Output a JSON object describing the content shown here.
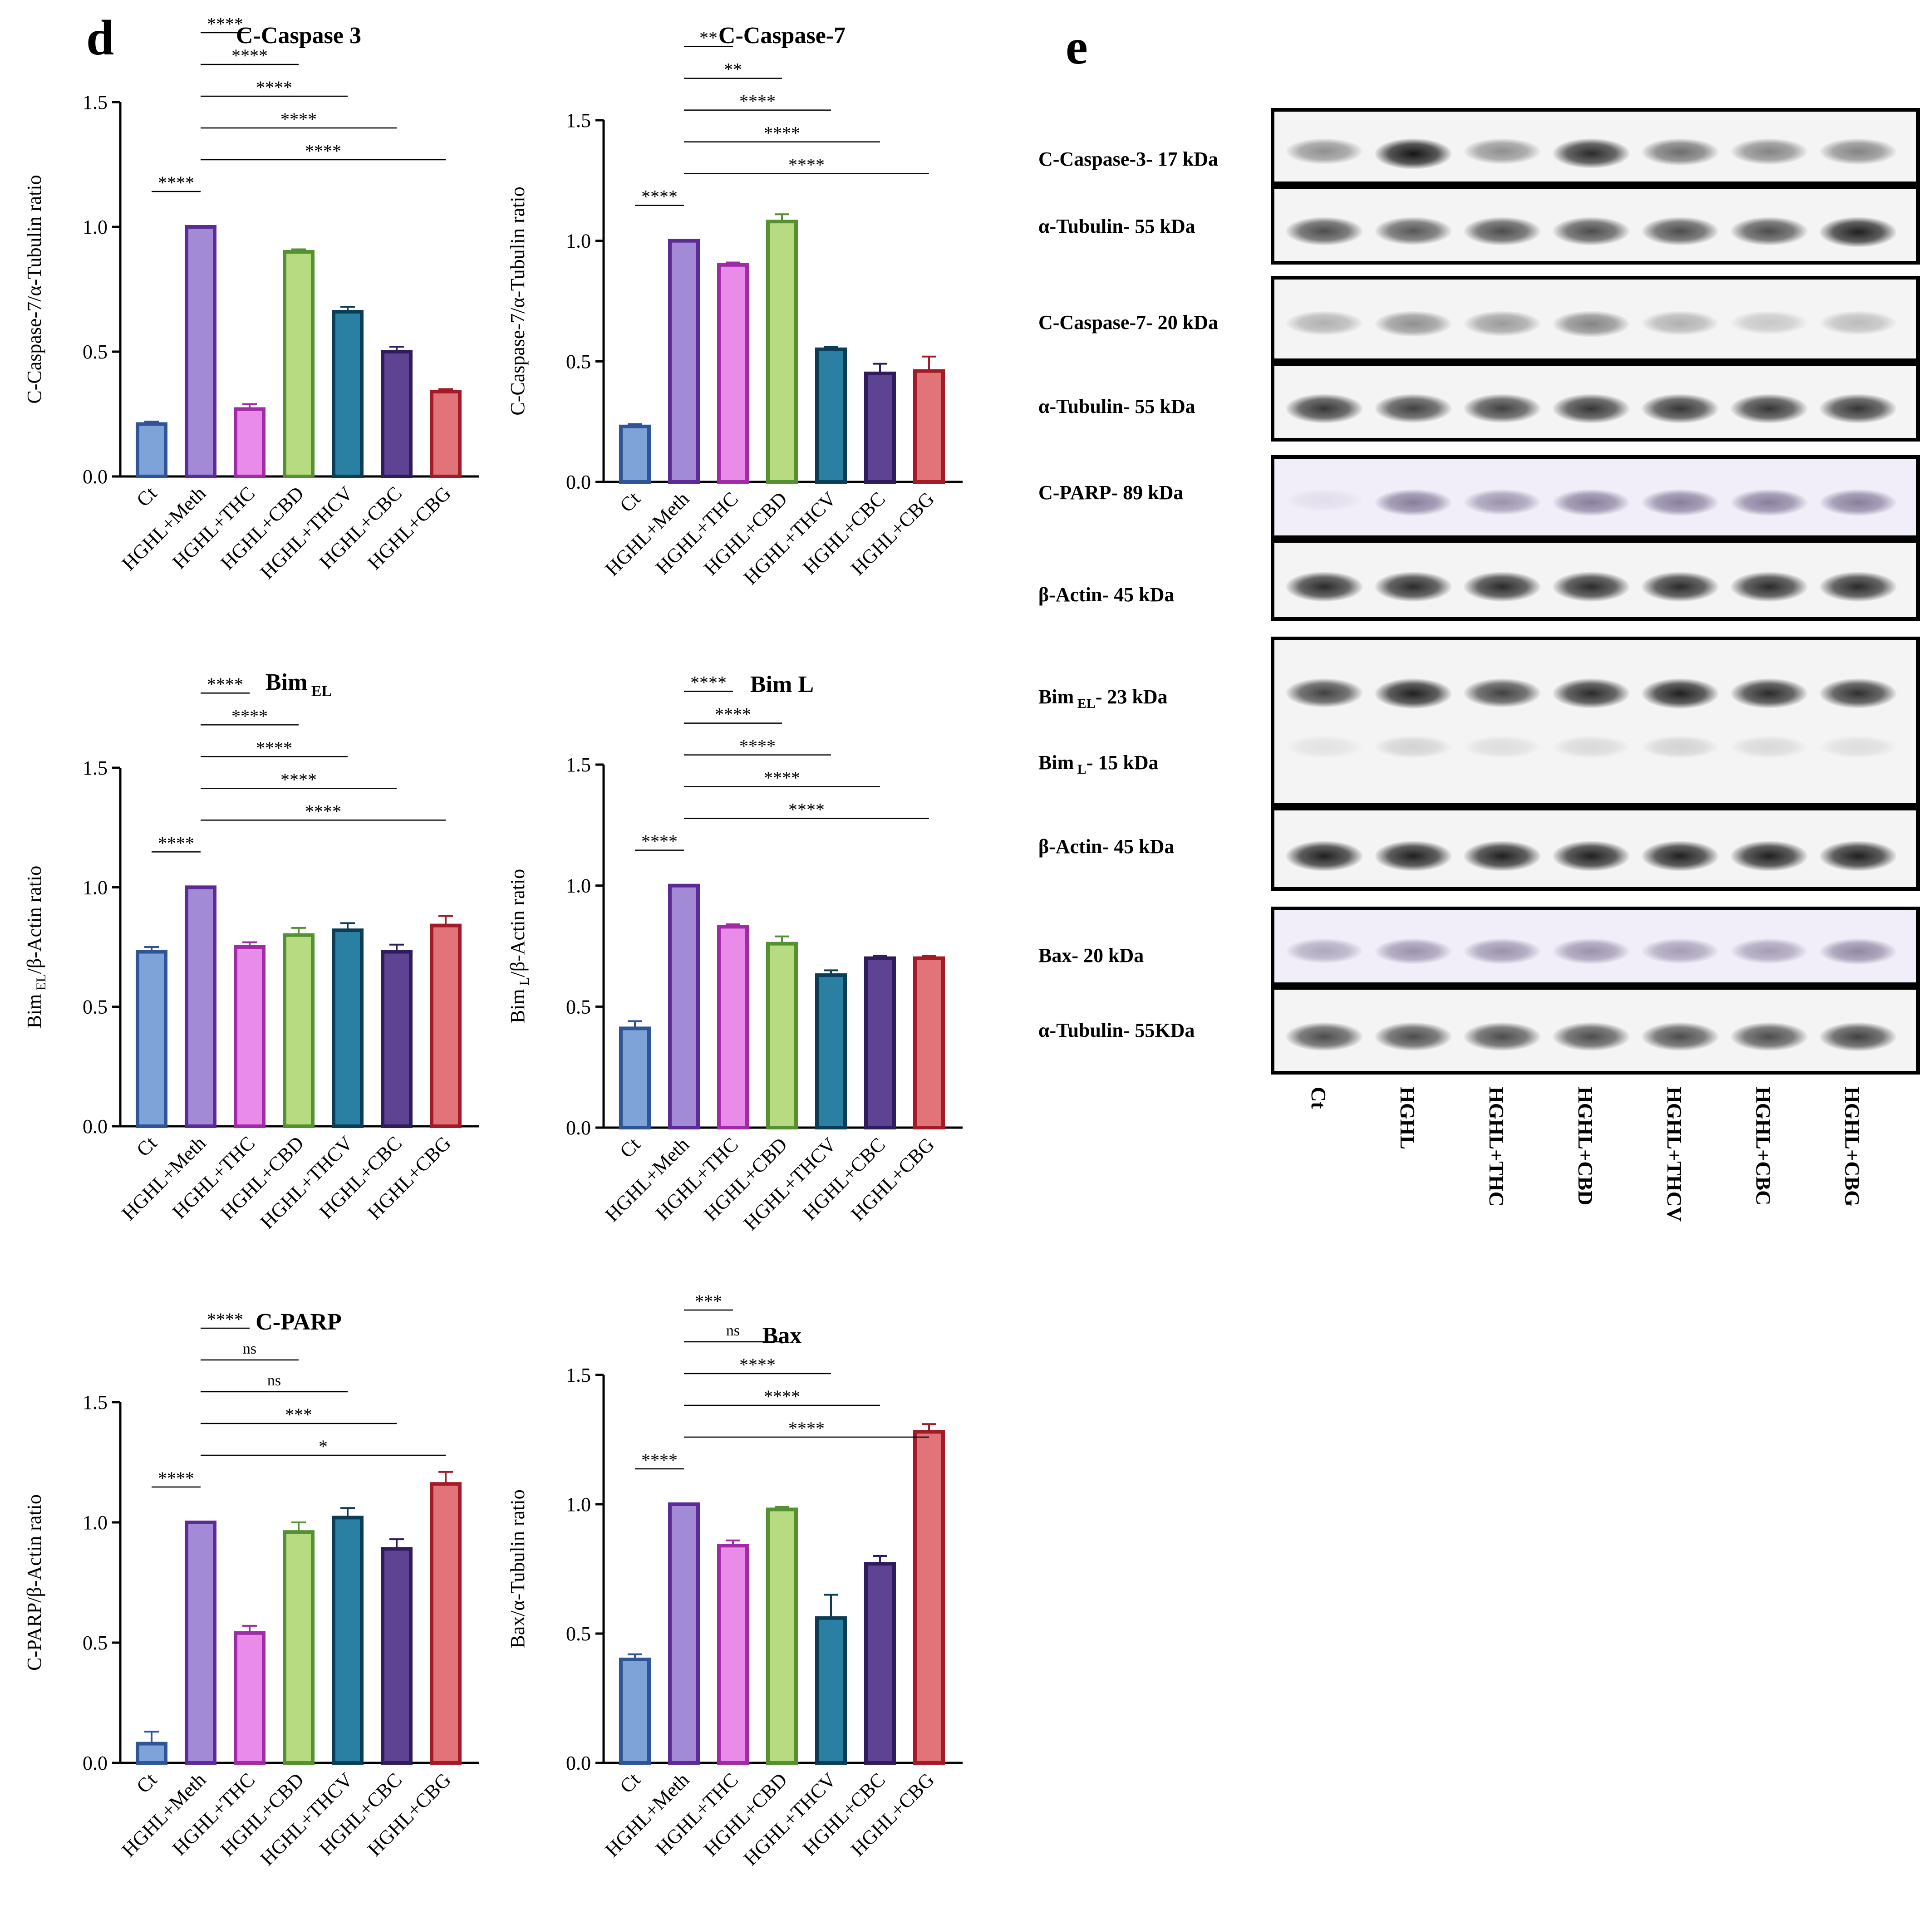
{
  "panel_letters": {
    "d": "d",
    "e": "e"
  },
  "colors": {
    "Ct": {
      "fill": "#7ea3d8",
      "stroke": "#2f5597"
    },
    "HGHL+Meth": {
      "fill": "#a28ad6",
      "stroke": "#5b2c96"
    },
    "HGHL+THC": {
      "fill": "#e98be8",
      "stroke": "#a12aa6"
    },
    "HGHL+CBD": {
      "fill": "#b7db80",
      "stroke": "#559130"
    },
    "HGHL+THCV": {
      "fill": "#2a80a3",
      "stroke": "#0c3d57"
    },
    "HGHL+CBC": {
      "fill": "#5f4393",
      "stroke": "#2f1c5c"
    },
    "HGHL+CBG": {
      "fill": "#e07479",
      "stroke": "#a31b26"
    }
  },
  "chart_data": [
    {
      "id": "caspase3",
      "type": "bar",
      "title": "C-Caspase 3",
      "title_sub": "",
      "ylabel": "C-Caspase-7/α-Tubulin ratio",
      "ylabel_sub": "",
      "ylabel_tail": "",
      "ylim": [
        0,
        1.5
      ],
      "yticks": [
        "0.0",
        "0.5",
        "1.0",
        "1.5"
      ],
      "categories": [
        "Ct",
        "HGHL+Meth",
        "HGHL+THC",
        "HGHL+CBD",
        "HGHL+THCV",
        "HGHL+CBC",
        "HGHL+CBG"
      ],
      "values": [
        0.21,
        1.0,
        0.27,
        0.9,
        0.66,
        0.5,
        0.34
      ],
      "errors": [
        0.01,
        0.0,
        0.02,
        0.01,
        0.02,
        0.02,
        0.01
      ],
      "sig": [
        {
          "from": 0,
          "to": 1,
          "label": "****"
        },
        {
          "from": 1,
          "to": 2,
          "label": "****"
        },
        {
          "from": 1,
          "to": 3,
          "label": "****"
        },
        {
          "from": 1,
          "to": 4,
          "label": "****"
        },
        {
          "from": 1,
          "to": 5,
          "label": "****"
        },
        {
          "from": 1,
          "to": 6,
          "label": "****"
        }
      ]
    },
    {
      "id": "caspase7",
      "type": "bar",
      "title": "C-Caspase-7",
      "title_sub": "",
      "ylabel": "C-Caspase-7/α-Tubulin ratio",
      "ylabel_sub": "",
      "ylabel_tail": "",
      "ylim": [
        0,
        1.5
      ],
      "yticks": [
        "0.0",
        "0.5",
        "1.0",
        "1.5"
      ],
      "categories": [
        "Ct",
        "HGHL+Meth",
        "HGHL+THC",
        "HGHL+CBD",
        "HGHL+THCV",
        "HGHL+CBC",
        "HGHL+CBG"
      ],
      "values": [
        0.23,
        1.0,
        0.9,
        1.08,
        0.55,
        0.45,
        0.46
      ],
      "errors": [
        0.01,
        0.0,
        0.01,
        0.03,
        0.01,
        0.04,
        0.06
      ],
      "sig": [
        {
          "from": 0,
          "to": 1,
          "label": "****"
        },
        {
          "from": 1,
          "to": 2,
          "label": "**"
        },
        {
          "from": 1,
          "to": 3,
          "label": "**"
        },
        {
          "from": 1,
          "to": 4,
          "label": "****"
        },
        {
          "from": 1,
          "to": 5,
          "label": "****"
        },
        {
          "from": 1,
          "to": 6,
          "label": "****"
        }
      ]
    },
    {
      "id": "bimel",
      "type": "bar",
      "title": "Bim",
      "title_sub": "EL",
      "ylabel": "Bim",
      "ylabel_sub": "EL",
      "ylabel_tail": "/β-Actin ratio",
      "ylim": [
        0,
        1.5
      ],
      "yticks": [
        "0.0",
        "0.5",
        "1.0",
        "1.5"
      ],
      "categories": [
        "Ct",
        "HGHL+Meth",
        "HGHL+THC",
        "HGHL+CBD",
        "HGHL+THCV",
        "HGHL+CBC",
        "HGHL+CBG"
      ],
      "values": [
        0.73,
        1.0,
        0.75,
        0.8,
        0.82,
        0.73,
        0.84
      ],
      "errors": [
        0.02,
        0.0,
        0.02,
        0.03,
        0.03,
        0.03,
        0.04
      ],
      "sig": [
        {
          "from": 0,
          "to": 1,
          "label": "****"
        },
        {
          "from": 1,
          "to": 2,
          "label": "****"
        },
        {
          "from": 1,
          "to": 3,
          "label": "****"
        },
        {
          "from": 1,
          "to": 4,
          "label": "****"
        },
        {
          "from": 1,
          "to": 5,
          "label": "****"
        },
        {
          "from": 1,
          "to": 6,
          "label": "****"
        }
      ]
    },
    {
      "id": "biml",
      "type": "bar",
      "title": "Bim L",
      "title_sub": "",
      "ylabel": "Bim",
      "ylabel_sub": "L",
      "ylabel_tail": "/β-Actin ratio",
      "ylim": [
        0,
        1.5
      ],
      "yticks": [
        "0.0",
        "0.5",
        "1.0",
        "1.5"
      ],
      "categories": [
        "Ct",
        "HGHL+Meth",
        "HGHL+THC",
        "HGHL+CBD",
        "HGHL+THCV",
        "HGHL+CBC",
        "HGHL+CBG"
      ],
      "values": [
        0.41,
        1.0,
        0.83,
        0.76,
        0.63,
        0.7,
        0.7
      ],
      "errors": [
        0.03,
        0.0,
        0.01,
        0.03,
        0.02,
        0.01,
        0.01
      ],
      "sig": [
        {
          "from": 0,
          "to": 1,
          "label": "****"
        },
        {
          "from": 1,
          "to": 2,
          "label": "****"
        },
        {
          "from": 1,
          "to": 3,
          "label": "****"
        },
        {
          "from": 1,
          "to": 4,
          "label": "****"
        },
        {
          "from": 1,
          "to": 5,
          "label": "****"
        },
        {
          "from": 1,
          "to": 6,
          "label": "****"
        }
      ]
    },
    {
      "id": "cparp",
      "type": "bar",
      "title": "C-PARP",
      "title_sub": "",
      "ylabel": "C-PARP/β-Actin ratio",
      "ylabel_sub": "",
      "ylabel_tail": "",
      "ylim": [
        0,
        1.5
      ],
      "yticks": [
        "0.0",
        "0.5",
        "1.0",
        "1.5"
      ],
      "categories": [
        "Ct",
        "HGHL+Meth",
        "HGHL+THC",
        "HGHL+CBD",
        "HGHL+THCV",
        "HGHL+CBC",
        "HGHL+CBG"
      ],
      "values": [
        0.08,
        1.0,
        0.54,
        0.96,
        1.02,
        0.89,
        1.16
      ],
      "errors": [
        0.05,
        0.0,
        0.03,
        0.04,
        0.04,
        0.04,
        0.05
      ],
      "sig": [
        {
          "from": 0,
          "to": 1,
          "label": "****"
        },
        {
          "from": 1,
          "to": 2,
          "label": "****"
        },
        {
          "from": 1,
          "to": 3,
          "label": "ns"
        },
        {
          "from": 1,
          "to": 4,
          "label": "ns"
        },
        {
          "from": 1,
          "to": 5,
          "label": "***"
        },
        {
          "from": 1,
          "to": 6,
          "label": "*"
        }
      ]
    },
    {
      "id": "bax",
      "type": "bar",
      "title": "Bax",
      "title_sub": "",
      "ylabel": "Bax/α-Tubulin ratio",
      "ylabel_sub": "",
      "ylabel_tail": "",
      "ylim": [
        0,
        1.5
      ],
      "yticks": [
        "0.0",
        "0.5",
        "1.0",
        "1.5"
      ],
      "categories": [
        "Ct",
        "HGHL+Meth",
        "HGHL+THC",
        "HGHL+CBD",
        "HGHL+THCV",
        "HGHL+CBC",
        "HGHL+CBG"
      ],
      "values": [
        0.4,
        1.0,
        0.84,
        0.98,
        0.56,
        0.77,
        1.28
      ],
      "errors": [
        0.02,
        0.0,
        0.02,
        0.01,
        0.09,
        0.03,
        0.03
      ],
      "sig": [
        {
          "from": 0,
          "to": 1,
          "label": "****"
        },
        {
          "from": 1,
          "to": 2,
          "label": "***"
        },
        {
          "from": 1,
          "to": 3,
          "label": "ns"
        },
        {
          "from": 1,
          "to": 4,
          "label": "****"
        },
        {
          "from": 1,
          "to": 5,
          "label": "****"
        },
        {
          "from": 1,
          "to": 6,
          "label": "****"
        }
      ]
    }
  ],
  "blot": {
    "lane_labels": [
      "Ct",
      "HGHL",
      "HGHL+THC",
      "HGHL+CBD",
      "HGHL+THCV",
      "HGHL+CBC",
      "HGHL+CBG"
    ],
    "bands": [
      {
        "label": "C-Caspase-3- 17 kDa",
        "label_sub": "",
        "label_tail": "",
        "intensity": [
          0.45,
          1.0,
          0.45,
          0.9,
          0.6,
          0.5,
          0.5
        ]
      },
      {
        "label": "α-Tubulin- 55 kDa",
        "label_sub": "",
        "label_tail": "",
        "intensity": [
          0.75,
          0.7,
          0.75,
          0.75,
          0.75,
          0.75,
          0.95
        ]
      },
      {
        "label": "C-Caspase-7- 20 kDa",
        "label_sub": "",
        "label_tail": "",
        "intensity": [
          0.3,
          0.45,
          0.4,
          0.5,
          0.3,
          0.2,
          0.25
        ]
      },
      {
        "label": "α-Tubulin- 55 kDa",
        "label_sub": "",
        "label_tail": "",
        "intensity": [
          0.85,
          0.8,
          0.8,
          0.85,
          0.85,
          0.85,
          0.85
        ]
      },
      {
        "label": "C-PARP- 89 kDa",
        "label_sub": "",
        "label_tail": "",
        "intensity": [
          0.08,
          0.55,
          0.45,
          0.55,
          0.55,
          0.55,
          0.55
        ]
      },
      {
        "label": "β-Actin- 45 kDa",
        "label_sub": "",
        "label_tail": "",
        "intensity": [
          0.9,
          0.9,
          0.9,
          0.9,
          0.9,
          0.9,
          0.9
        ]
      },
      {
        "label": "Bim",
        "label_sub": "EL",
        "label_tail": "- 23 kDa",
        "intensity": [
          0.8,
          0.95,
          0.8,
          0.9,
          0.95,
          0.9,
          0.88
        ]
      },
      {
        "label": "Bim",
        "label_sub": "L",
        "label_tail": "- 15 kDa",
        "intensity": [
          0.08,
          0.15,
          0.1,
          0.12,
          0.15,
          0.12,
          0.1
        ]
      },
      {
        "label": "β-Actin- 45 kDa",
        "label_sub": "",
        "label_tail": "",
        "intensity": [
          0.95,
          0.95,
          0.95,
          0.95,
          0.95,
          0.95,
          0.95
        ]
      },
      {
        "label": "Bax- 20 kDa",
        "label_sub": "",
        "label_tail": "",
        "intensity": [
          0.35,
          0.45,
          0.45,
          0.45,
          0.4,
          0.4,
          0.5
        ]
      },
      {
        "label": "α-Tubulin- 55KDa",
        "label_sub": "",
        "label_tail": "",
        "intensity": [
          0.75,
          0.75,
          0.75,
          0.75,
          0.75,
          0.75,
          0.8
        ]
      }
    ]
  }
}
